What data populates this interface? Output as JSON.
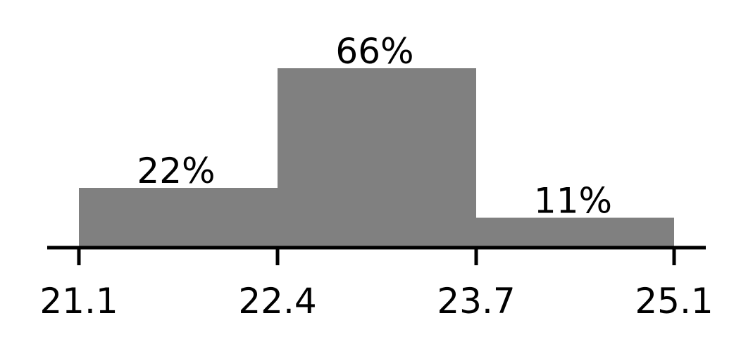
{
  "chart_data": {
    "type": "bar",
    "bins": [
      {
        "x_start": 21.1,
        "x_end": 22.4,
        "value": 22,
        "label": "22%"
      },
      {
        "x_start": 22.4,
        "x_end": 23.7,
        "value": 66,
        "label": "66%"
      },
      {
        "x_start": 23.7,
        "x_end": 25.1,
        "value": 11,
        "label": "11%"
      }
    ],
    "x_ticks": [
      "21.1",
      "22.4",
      "23.7",
      "25.1"
    ],
    "ylim": [
      0,
      66
    ],
    "grid": false,
    "legend": "none",
    "bar_color": "#808080"
  }
}
